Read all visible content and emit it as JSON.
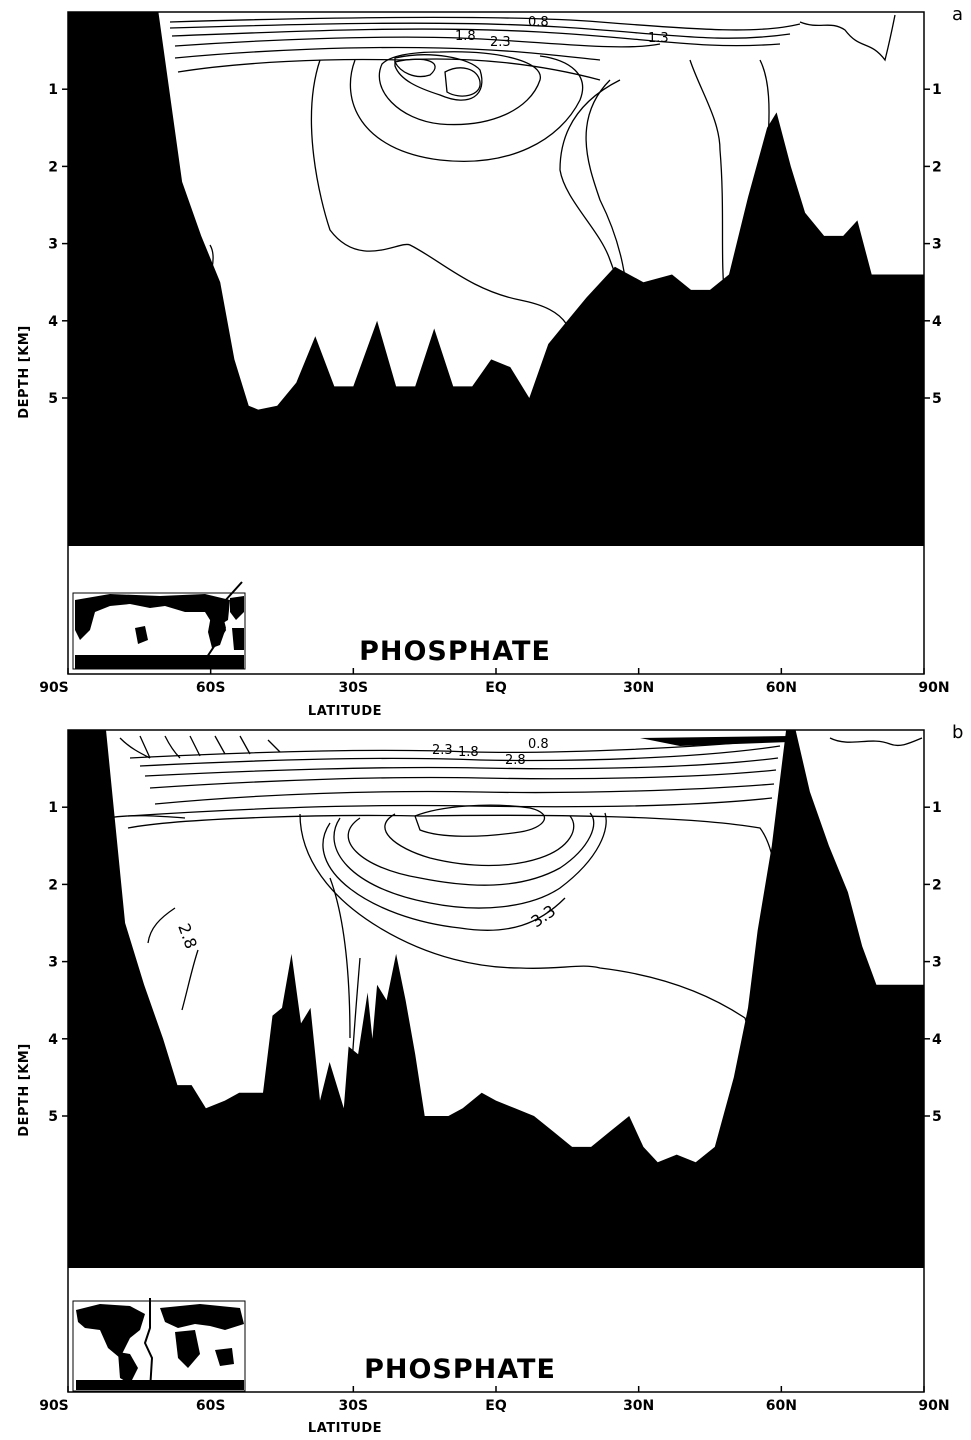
{
  "chart_data": [
    {
      "type": "contour",
      "panel_letter": "a",
      "title": "PHOSPHATE",
      "xlabel": "LATITUDE",
      "ylabel": "DEPTH [KM]",
      "x_ticks": [
        "90S",
        "60S",
        "30S",
        "EQ",
        "30N",
        "60N",
        "90N"
      ],
      "y_ticks_left": [
        "1",
        "2",
        "3",
        "4",
        "5"
      ],
      "y_ticks_right": [
        "1",
        "2",
        "3",
        "4",
        "5"
      ],
      "xlim": [
        -90,
        90
      ],
      "ylim_km": [
        0,
        6.7
      ],
      "y_axis_inverted": true,
      "contour_labels": [
        "1.8",
        "2.3",
        "0.8",
        "1.3"
      ],
      "contour_level_values": [
        0.8,
        1.3,
        1.8,
        2.3
      ],
      "fill": "#000000",
      "inset_map": "world-map-section-location",
      "bathymetry": {
        "lat": [
          -90,
          -71,
          -66,
          -62,
          -58,
          -55,
          -52,
          -50,
          -46,
          -42,
          -38,
          -34,
          -30,
          -25,
          -21,
          -17,
          -13,
          -9,
          -5,
          -1,
          3,
          7,
          11,
          15,
          19,
          25,
          31,
          37,
          41,
          45,
          49,
          53,
          57,
          59,
          62,
          65,
          69,
          73,
          76,
          79,
          82,
          90
        ],
        "depth_km": [
          0,
          0,
          2.2,
          2.9,
          3.5,
          4.5,
          5.1,
          5.15,
          5.1,
          4.8,
          4.2,
          4.85,
          4.85,
          4.0,
          4.85,
          4.85,
          4.1,
          4.85,
          4.85,
          4.5,
          4.6,
          5.0,
          4.3,
          4.0,
          3.7,
          3.3,
          3.5,
          3.4,
          3.6,
          3.6,
          3.4,
          2.4,
          1.5,
          1.3,
          2.0,
          2.6,
          2.9,
          2.9,
          2.7,
          3.4,
          3.4,
          3.4
        ]
      }
    },
    {
      "type": "contour",
      "panel_letter": "b",
      "title": "PHOSPHATE",
      "xlabel": "LATITUDE",
      "ylabel": "DEPTH [KM]",
      "x_ticks": [
        "90S",
        "60S",
        "30S",
        "EQ",
        "30N",
        "60N",
        "90N"
      ],
      "y_ticks_left": [
        "1",
        "2",
        "3",
        "4",
        "5"
      ],
      "y_ticks_right": [
        "1",
        "2",
        "3",
        "4",
        "5"
      ],
      "xlim": [
        -90,
        90
      ],
      "ylim_km": [
        0,
        6.7
      ],
      "y_axis_inverted": true,
      "contour_labels": [
        "1.8",
        "0.8",
        "2.8",
        "2.3",
        "3.3",
        "2.8"
      ],
      "contour_level_values": [
        0.8,
        1.3,
        1.8,
        2.3,
        2.8,
        3.3
      ],
      "fill": "#000000",
      "inset_map": "world-map-section-location",
      "bathymetry": {
        "lat": [
          -90,
          -82,
          -78,
          -74,
          -70,
          -67,
          -64,
          -61,
          -57,
          -54,
          -52,
          -49,
          -47,
          -45,
          -43,
          -41,
          -39,
          -37,
          -35,
          -32,
          -31,
          -29,
          -27,
          -26,
          -25,
          -23,
          -21,
          -19,
          -17,
          -15,
          -13,
          -10,
          -7,
          -3,
          0,
          4,
          8,
          12,
          16,
          20,
          24,
          28,
          31,
          34,
          38,
          42,
          46,
          50,
          53,
          55,
          58,
          61,
          63,
          66,
          70,
          74,
          77,
          80,
          82,
          90
        ],
        "depth_km": [
          0,
          0,
          2.5,
          3.3,
          4.0,
          4.6,
          4.6,
          4.9,
          4.8,
          4.7,
          4.7,
          4.7,
          3.7,
          3.6,
          2.9,
          3.8,
          3.6,
          4.8,
          4.3,
          4.9,
          4.1,
          4.2,
          3.4,
          4.0,
          3.3,
          3.5,
          2.9,
          3.5,
          4.2,
          5.0,
          5.0,
          5.0,
          4.9,
          4.7,
          4.8,
          4.9,
          5.0,
          5.2,
          5.4,
          5.4,
          5.2,
          5.0,
          5.4,
          5.6,
          5.5,
          5.6,
          5.4,
          4.5,
          3.6,
          2.6,
          1.5,
          0.0,
          0.0,
          0.8,
          1.5,
          2.1,
          2.8,
          3.3,
          3.3,
          3.3
        ]
      }
    }
  ]
}
